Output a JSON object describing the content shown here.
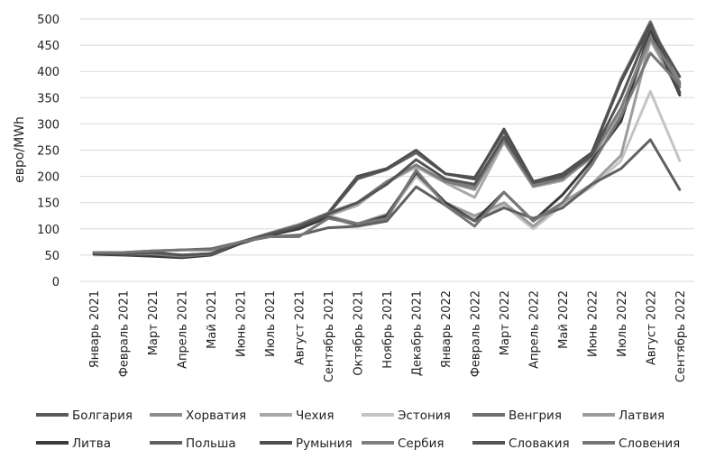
{
  "chart_data": {
    "type": "line",
    "title": "",
    "xlabel": "",
    "ylabel": "евро/MWh",
    "ylim": [
      0,
      500
    ],
    "yticks": [
      0,
      50,
      100,
      150,
      200,
      250,
      300,
      350,
      400,
      450,
      500
    ],
    "grid": "horizontal",
    "legend_position": "bottom",
    "categories": [
      "Январь 2021",
      "Февраль 2021",
      "Март 2021",
      "Апрель 2021",
      "Май 2021",
      "Июнь 2021",
      "Июль 2021",
      "Август 2021",
      "Сентябрь 2021",
      "Октябрь 2021",
      "Ноябрь 2021",
      "Декабрь 2021",
      "Январь 2022",
      "Февраль 2022",
      "Март 2022",
      "Апрель 2022",
      "Май 2022",
      "Июнь 2022",
      "Июль 2022",
      "Август 2022",
      "Сентябрь 2022"
    ],
    "series": [
      {
        "name": "Болгария",
        "color": "#5a5a5a",
        "values": [
          52,
          50,
          50,
          47,
          52,
          75,
          90,
          105,
          128,
          195,
          213,
          245,
          205,
          198,
          285,
          188,
          200,
          240,
          385,
          492,
          360
        ]
      },
      {
        "name": "Хорватия",
        "color": "#8c8c8c",
        "values": [
          55,
          52,
          52,
          47,
          53,
          75,
          92,
          108,
          130,
          150,
          190,
          220,
          190,
          175,
          270,
          185,
          195,
          235,
          330,
          470,
          380
        ]
      },
      {
        "name": "Чехия",
        "color": "#a8a8a8",
        "values": [
          53,
          50,
          50,
          48,
          50,
          73,
          88,
          105,
          125,
          145,
          188,
          218,
          188,
          160,
          265,
          180,
          192,
          238,
          320,
          460,
          375
        ]
      },
      {
        "name": "Эстония",
        "color": "#c4c4c4",
        "values": [
          50,
          50,
          48,
          45,
          50,
          72,
          88,
          100,
          122,
          105,
          125,
          200,
          150,
          120,
          145,
          100,
          145,
          180,
          230,
          362,
          230
        ]
      },
      {
        "name": "Венгрия",
        "color": "#6e6e6e",
        "values": [
          55,
          52,
          53,
          48,
          52,
          75,
          92,
          108,
          130,
          200,
          215,
          248,
          205,
          195,
          290,
          190,
          202,
          245,
          385,
          495,
          370
        ]
      },
      {
        "name": "Латвия",
        "color": "#9c9c9c",
        "values": [
          52,
          50,
          50,
          46,
          50,
          73,
          88,
          100,
          125,
          110,
          128,
          205,
          150,
          125,
          150,
          105,
          150,
          185,
          240,
          460,
          360
        ]
      },
      {
        "name": "Литва",
        "color": "#3c3c3c",
        "values": [
          52,
          50,
          48,
          45,
          50,
          72,
          88,
          100,
          122,
          108,
          125,
          208,
          150,
          115,
          170,
          115,
          165,
          230,
          305,
          480,
          355
        ]
      },
      {
        "name": "Польша",
        "color": "#606060",
        "values": [
          55,
          55,
          58,
          60,
          62,
          75,
          85,
          88,
          102,
          105,
          115,
          180,
          145,
          115,
          140,
          120,
          140,
          185,
          215,
          270,
          175
        ]
      },
      {
        "name": "Румыния",
        "color": "#4e4e4e",
        "values": [
          55,
          55,
          55,
          50,
          53,
          75,
          90,
          105,
          130,
          200,
          215,
          250,
          205,
          195,
          290,
          190,
          205,
          245,
          380,
          490,
          360
        ]
      },
      {
        "name": "Сербия",
        "color": "#7e7e7e",
        "values": [
          55,
          52,
          52,
          48,
          52,
          75,
          92,
          108,
          130,
          150,
          190,
          222,
          190,
          180,
          268,
          182,
          195,
          238,
          330,
          465,
          378
        ]
      },
      {
        "name": "Словакия",
        "color": "#545454",
        "values": [
          55,
          52,
          55,
          50,
          53,
          75,
          90,
          105,
          128,
          150,
          185,
          232,
          195,
          185,
          275,
          188,
          200,
          240,
          350,
          485,
          390
        ]
      },
      {
        "name": "Словения",
        "color": "#767676",
        "values": [
          55,
          55,
          58,
          60,
          60,
          75,
          85,
          85,
          120,
          110,
          120,
          212,
          145,
          105,
          170,
          115,
          150,
          222,
          315,
          435,
          375
        ]
      }
    ]
  }
}
